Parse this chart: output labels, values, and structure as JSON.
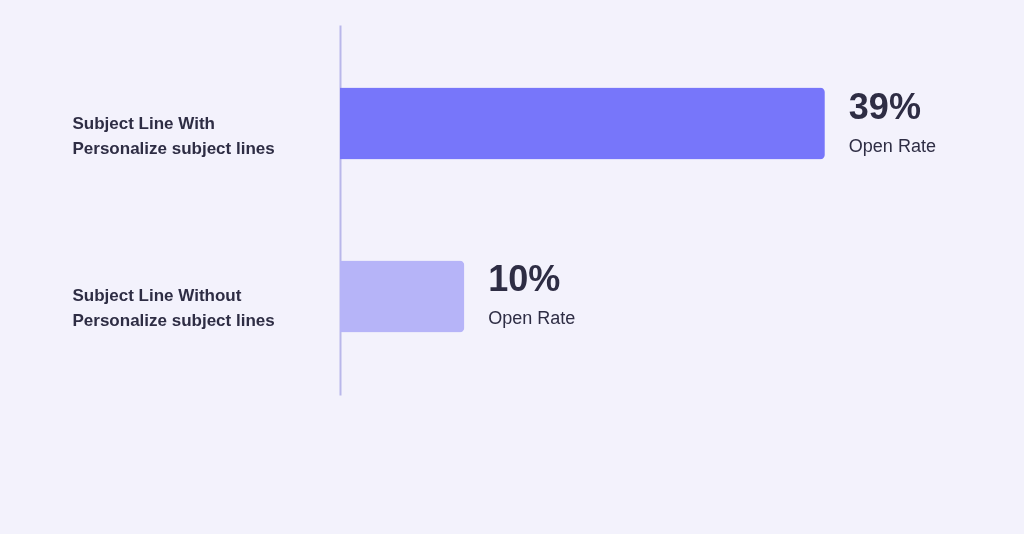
{
  "chart_data": {
    "type": "bar",
    "orientation": "horizontal",
    "categories": [
      "Subject Line With\nPersonalize subject lines",
      "Subject Line Without\nPersonalize subject lines"
    ],
    "values": [
      39,
      10
    ],
    "colors": [
      "#7776fa",
      "#b6b4f8"
    ],
    "value_labels": [
      "39%",
      "10%"
    ],
    "annotations": [
      {
        "text": "Open Rate",
        "x": 39,
        "y": "Subject Line With\nPersonalize subject lines"
      },
      {
        "text": "Open Rate",
        "x": 10,
        "y": "Subject Line Without\nPersonalize subject lines"
      }
    ],
    "grid": false
  }
}
